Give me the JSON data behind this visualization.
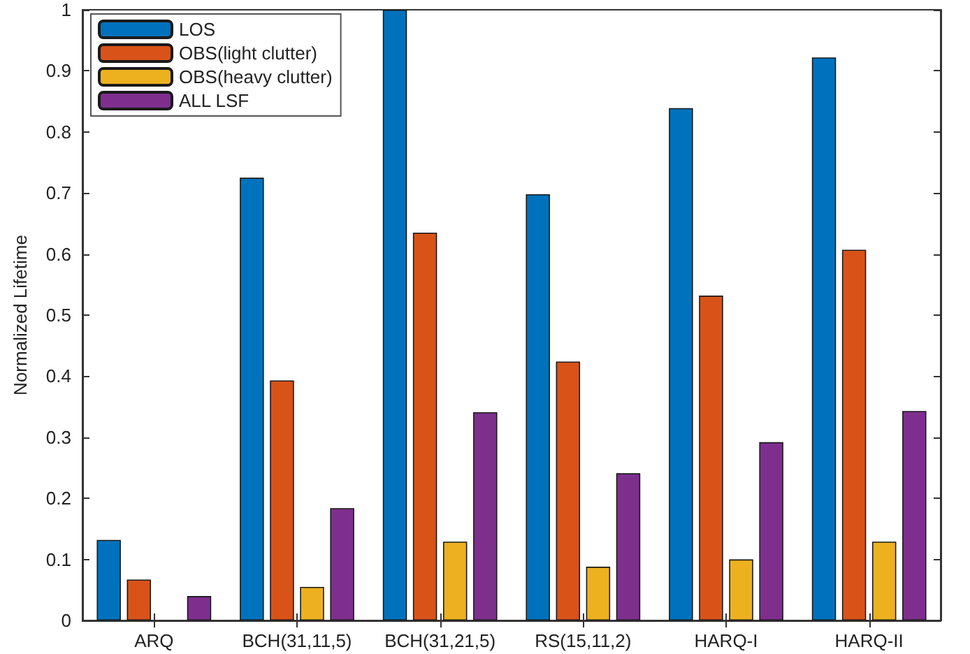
{
  "chart_data": {
    "type": "bar",
    "ylabel": "Normalized Lifetime",
    "categories": [
      "ARQ",
      "BCH(31,11,5)",
      "BCH(31,21,5)",
      "RS(15,11,2)",
      "HARQ-I",
      "HARQ-II"
    ],
    "series": [
      {
        "name": "LOS",
        "color": "#0072bd",
        "values": [
          0.132,
          0.725,
          1.0,
          0.698,
          0.839,
          0.922
        ]
      },
      {
        "name": "OBS(light clutter)",
        "color": "#d95319",
        "values": [
          0.067,
          0.393,
          0.635,
          0.424,
          0.532,
          0.607
        ]
      },
      {
        "name": "OBS(heavy clutter)",
        "color": "#edb120",
        "values": [
          null,
          0.055,
          0.129,
          0.088,
          0.1,
          0.129
        ]
      },
      {
        "name": "ALL LSF",
        "color": "#7e2f8e",
        "values": [
          0.04,
          0.184,
          0.341,
          0.241,
          0.292,
          0.343
        ]
      }
    ],
    "ylim": [
      0,
      1
    ],
    "yticks": [
      0,
      0.1,
      0.2,
      0.3,
      0.4,
      0.5,
      0.6,
      0.7,
      0.8,
      0.9,
      1
    ],
    "grid": false,
    "legend": "top left"
  }
}
